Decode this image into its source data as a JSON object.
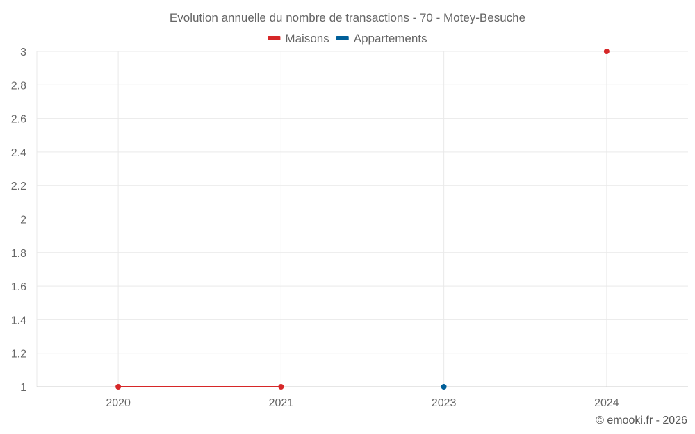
{
  "chart_data": {
    "type": "line",
    "title": "Evolution annuelle du nombre de transactions - 70 - Motey-Besuche",
    "categories": [
      "2020",
      "2021",
      "2023",
      "2024"
    ],
    "ylim": [
      1,
      3
    ],
    "yticks": [
      "1",
      "1.2",
      "1.4",
      "1.6",
      "1.8",
      "2",
      "2.2",
      "2.4",
      "2.6",
      "2.8",
      "3"
    ],
    "grid": true,
    "legend_position": "top-center",
    "series": [
      {
        "name": "Maisons",
        "color": "#d62728",
        "values": [
          1,
          1,
          null,
          3
        ]
      },
      {
        "name": "Appartements",
        "color": "#005f99",
        "values": [
          null,
          null,
          1,
          null
        ]
      }
    ]
  },
  "footer": {
    "credit": "© emooki.fr - 2026"
  }
}
